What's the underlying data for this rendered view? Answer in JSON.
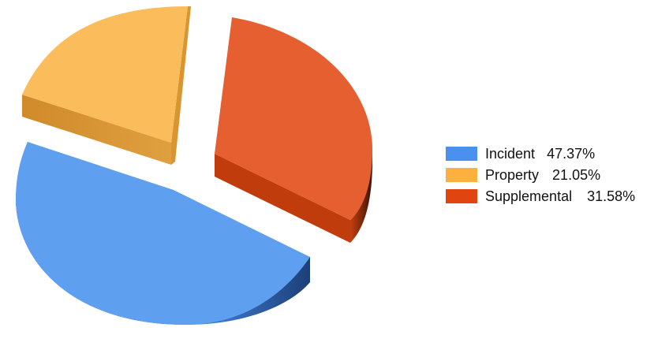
{
  "chart_data": {
    "type": "pie",
    "style": "3d-exploded",
    "legend_position": "right",
    "slices": [
      {
        "label": "Incident",
        "value": 47.37,
        "percent_label": "47.37%",
        "color": "#5e9ff0",
        "side_color": "#3a6fc0"
      },
      {
        "label": "Property",
        "value": 21.05,
        "percent_label": "21.05%",
        "color": "#fbbd5c",
        "side_color": "#d9952f"
      },
      {
        "label": "Supplemental",
        "value": 31.58,
        "percent_label": "31.58%",
        "color": "#e55f31",
        "side_color": "#b8380d"
      }
    ]
  }
}
